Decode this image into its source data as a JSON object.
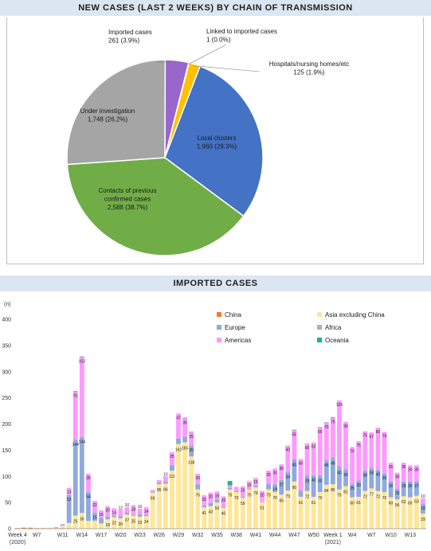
{
  "chart_data": [
    {
      "type": "pie",
      "title": "NEW CASES (LAST 2 WEEKS) BY CHAIN OF TRANSMISSION",
      "slices": [
        {
          "label": "Imported cases",
          "value_text": "261 (3.9%)",
          "value": 261,
          "percent": 3.9,
          "color": "#9966cc"
        },
        {
          "label": "Linked to imported cases",
          "value_text": "1 (0.0%)",
          "value": 1,
          "percent": 0.0,
          "color": "#f2c200"
        },
        {
          "label": "Hospitals/nursing homes/etc",
          "value_text": "125 (1.9%)",
          "value": 125,
          "percent": 1.9,
          "color": "#ffc000"
        },
        {
          "label": "Local clusters",
          "value_text": "1,960 (29.3%)",
          "value": 1960,
          "percent": 29.3,
          "color": "#4472c4"
        },
        {
          "label": "Contacts of previous confirmed cases",
          "value_text": "2,588 (38.7%)",
          "value": 2588,
          "percent": 38.7,
          "color": "#70ad47"
        },
        {
          "label": "Under investigation",
          "value_text": "1,748 (26.2%)",
          "value": 1748,
          "percent": 26.2,
          "color": "#a5a5a5"
        }
      ]
    },
    {
      "type": "bar",
      "stacked": true,
      "title": "IMPORTED CASES",
      "ylabel": "(n)",
      "ylim": [
        0,
        400
      ],
      "yticks": [
        "0",
        "50",
        "100",
        "150",
        "200",
        "250",
        "300",
        "350",
        "400"
      ],
      "grid": false,
      "legend_position": "top-right",
      "x_tick_labels": [
        {
          "index": 0,
          "label": "Week 4",
          "sub": "(2020)"
        },
        {
          "index": 3,
          "label": "W7"
        },
        {
          "index": 7,
          "label": "W11"
        },
        {
          "index": 10,
          "label": "W14"
        },
        {
          "index": 13,
          "label": "W17"
        },
        {
          "index": 16,
          "label": "W20"
        },
        {
          "index": 19,
          "label": "W23"
        },
        {
          "index": 22,
          "label": "W26"
        },
        {
          "index": 25,
          "label": "W29"
        },
        {
          "index": 28,
          "label": "W32"
        },
        {
          "index": 31,
          "label": "W35"
        },
        {
          "index": 34,
          "label": "W38"
        },
        {
          "index": 37,
          "label": "W41"
        },
        {
          "index": 40,
          "label": "W44"
        },
        {
          "index": 43,
          "label": "W47"
        },
        {
          "index": 46,
          "label": "W50"
        },
        {
          "index": 49,
          "label": "Week 1",
          "sub": "(2021)"
        },
        {
          "index": 52,
          "label": "W4"
        },
        {
          "index": 55,
          "label": "W7"
        },
        {
          "index": 58,
          "label": "W10"
        },
        {
          "index": 61,
          "label": "W13"
        }
      ],
      "series": [
        {
          "name": "China",
          "color": "#ed7d31",
          "values": [
            1,
            2,
            2,
            1,
            1,
            1,
            1,
            1,
            1,
            0,
            0,
            0,
            0,
            0,
            0,
            0,
            0,
            0,
            0,
            0,
            0,
            0,
            0,
            0,
            0,
            0,
            0,
            0,
            0,
            0,
            0,
            0,
            0,
            0,
            0,
            0,
            0,
            0,
            0,
            0,
            0,
            0,
            0,
            0,
            0,
            0,
            0,
            0,
            0,
            0,
            0,
            0,
            0,
            0,
            0,
            0,
            0,
            0,
            0,
            0,
            0,
            0,
            0,
            0
          ]
        },
        {
          "name": "Asia excluding China",
          "color": "#ffe699",
          "values": [
            0,
            0,
            0,
            0,
            1,
            1,
            1,
            5,
            10,
            25,
            30,
            15,
            15,
            10,
            18,
            22,
            20,
            27,
            25,
            23,
            24,
            69,
            85,
            86,
            111,
            162,
            165,
            138,
            75,
            41,
            43,
            50,
            40,
            75,
            70,
            59,
            75,
            79,
            51,
            75,
            70,
            65,
            73,
            90,
            61,
            72,
            61,
            70,
            84,
            85,
            75,
            81,
            60,
            61,
            72,
            77,
            72,
            70,
            60,
            56,
            62,
            60,
            63,
            29
          ]
        },
        {
          "name": "Europe",
          "color": "#8faadc",
          "values": [
            0,
            0,
            0,
            0,
            0,
            0,
            1,
            2,
            53,
            144,
            144,
            54,
            15,
            10,
            5,
            3,
            4,
            4,
            2,
            5,
            3,
            2,
            3,
            4,
            10,
            10,
            10,
            20,
            10,
            3,
            6,
            6,
            2,
            3,
            2,
            2,
            1,
            3,
            1,
            10,
            14,
            27,
            34,
            40,
            10,
            28,
            40,
            30,
            45,
            48,
            40,
            30,
            25,
            30,
            38,
            38,
            40,
            35,
            30,
            20,
            28,
            30,
            27,
            18
          ]
        },
        {
          "name": "Africa",
          "color": "#b4a7d6",
          "values": [
            0,
            0,
            0,
            0,
            0,
            0,
            0,
            0,
            1,
            2,
            2,
            1,
            1,
            0,
            0,
            0,
            0,
            0,
            0,
            0,
            0,
            0,
            0,
            0,
            0,
            1,
            1,
            1,
            0,
            0,
            0,
            0,
            0,
            0,
            0,
            0,
            0,
            0,
            0,
            1,
            1,
            1,
            2,
            3,
            2,
            3,
            2,
            3,
            3,
            4,
            5,
            3,
            1,
            1,
            1,
            2,
            1,
            1,
            1,
            1,
            1,
            1,
            1,
            1
          ]
        },
        {
          "name": "Americas",
          "color": "#ff99ff",
          "values": [
            0,
            0,
            0,
            0,
            0,
            0,
            0,
            1,
            13,
            91,
            152,
            35,
            22,
            15,
            20,
            14,
            12,
            10,
            18,
            10,
            14,
            3,
            5,
            10,
            25,
            47,
            35,
            25,
            20,
            20,
            20,
            15,
            20,
            5,
            8,
            20,
            15,
            15,
            20,
            25,
            30,
            30,
            50,
            55,
            60,
            60,
            62,
            90,
            70,
            75,
            125,
            90,
            70,
            75,
            75,
            67,
            80,
            79,
            35,
            30,
            35,
            30,
            30,
            10
          ]
        },
        {
          "name": "Oceania",
          "color": "#1fb28a",
          "values": [
            0,
            0,
            0,
            0,
            0,
            0,
            0,
            0,
            0,
            1,
            1,
            0,
            0,
            0,
            0,
            0,
            0,
            0,
            0,
            0,
            0,
            0,
            0,
            0,
            0,
            0,
            1,
            1,
            0,
            0,
            0,
            0,
            0,
            8,
            0,
            0,
            0,
            0,
            0,
            0,
            0,
            0,
            0,
            1,
            0,
            0,
            0,
            1,
            1,
            1,
            0,
            0,
            0,
            0,
            0,
            0,
            0,
            0,
            0,
            0,
            0,
            0,
            0,
            0
          ]
        }
      ]
    }
  ]
}
